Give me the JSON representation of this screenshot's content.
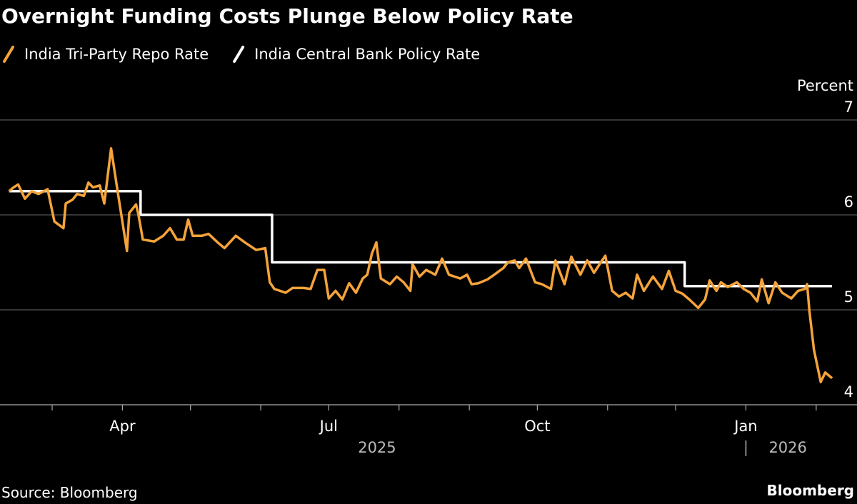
{
  "chart_data": {
    "type": "line",
    "title": "Overnight Funding Costs Plunge Below Policy Rate",
    "y_axis_label": "Percent",
    "source": "Source: Bloomberg",
    "brand": "Bloomberg",
    "ylim": [
      4,
      7
    ],
    "yticks": [
      4,
      5,
      6,
      7
    ],
    "xlim": [
      "2025-02-06",
      "2026-02-19"
    ],
    "xticks": [
      {
        "value": "2025-04-01",
        "label": "Apr"
      },
      {
        "value": "2025-07-01",
        "label": "Jul"
      },
      {
        "value": "2025-10-01",
        "label": "Oct"
      },
      {
        "value": "2026-01-01",
        "label": "Jan"
      }
    ],
    "xminorticks": [
      "2025-03-01",
      "2025-05-01",
      "2025-06-01",
      "2025-08-01",
      "2025-09-01",
      "2025-11-01",
      "2025-12-01",
      "2026-02-01"
    ],
    "year_labels": [
      "2025",
      "2026"
    ],
    "grid": true,
    "series": [
      {
        "name": "India Tri-Party Repo Rate",
        "color": "#f5a33a",
        "step": false,
        "x": [
          "2025-02-10",
          "2025-02-12",
          "2025-02-14",
          "2025-02-17",
          "2025-02-20",
          "2025-02-23",
          "2025-02-27",
          "2025-03-02",
          "2025-03-06",
          "2025-03-07",
          "2025-03-10",
          "2025-03-12",
          "2025-03-15",
          "2025-03-17",
          "2025-03-19",
          "2025-03-22",
          "2025-03-24",
          "2025-03-27",
          "2025-03-30",
          "2025-04-03",
          "2025-04-04",
          "2025-04-07",
          "2025-04-08",
          "2025-04-10",
          "2025-04-15",
          "2025-04-19",
          "2025-04-22",
          "2025-04-25",
          "2025-04-28",
          "2025-04-30",
          "2025-05-02",
          "2025-05-06",
          "2025-05-09",
          "2025-05-13",
          "2025-05-16",
          "2025-05-21",
          "2025-05-25",
          "2025-05-30",
          "2025-06-03",
          "2025-06-05",
          "2025-06-07",
          "2025-06-12",
          "2025-06-15",
          "2025-06-20",
          "2025-06-23",
          "2025-06-26",
          "2025-06-29",
          "2025-07-01",
          "2025-07-04",
          "2025-07-07",
          "2025-07-10",
          "2025-07-13",
          "2025-07-16",
          "2025-07-18",
          "2025-07-20",
          "2025-07-22",
          "2025-07-24",
          "2025-07-28",
          "2025-07-31",
          "2025-08-03",
          "2025-08-06",
          "2025-08-07",
          "2025-08-10",
          "2025-08-13",
          "2025-08-17",
          "2025-08-20",
          "2025-08-23",
          "2025-08-28",
          "2025-08-31",
          "2025-09-02",
          "2025-09-05",
          "2025-09-09",
          "2025-09-12",
          "2025-09-16",
          "2025-09-18",
          "2025-09-21",
          "2025-09-23",
          "2025-09-26",
          "2025-09-30",
          "2025-10-03",
          "2025-10-07",
          "2025-10-09",
          "2025-10-13",
          "2025-10-16",
          "2025-10-20",
          "2025-10-23",
          "2025-10-26",
          "2025-10-29",
          "2025-10-31",
          "2025-11-03",
          "2025-11-06",
          "2025-11-09",
          "2025-11-12",
          "2025-11-14",
          "2025-11-17",
          "2025-11-21",
          "2025-11-25",
          "2025-11-28",
          "2025-12-01",
          "2025-12-04",
          "2025-12-07",
          "2025-12-11",
          "2025-12-14",
          "2025-12-16",
          "2025-12-19",
          "2025-12-21",
          "2025-12-24",
          "2025-12-28",
          "2025-12-31",
          "2026-01-03",
          "2026-01-06",
          "2026-01-08",
          "2026-01-11",
          "2026-01-14",
          "2026-01-17",
          "2026-01-21",
          "2026-01-24",
          "2026-01-27",
          "2026-01-28",
          "2026-01-29",
          "2026-01-31",
          "2026-02-03",
          "2026-02-05",
          "2026-02-08"
        ],
        "values": [
          6.25,
          6.29,
          6.32,
          6.17,
          6.25,
          6.22,
          6.27,
          5.93,
          5.86,
          6.12,
          6.16,
          6.22,
          6.2,
          6.34,
          6.29,
          6.31,
          6.12,
          6.7,
          6.23,
          5.62,
          6.02,
          6.11,
          6.01,
          5.74,
          5.72,
          5.78,
          5.86,
          5.74,
          5.74,
          5.95,
          5.78,
          5.78,
          5.8,
          5.71,
          5.65,
          5.78,
          5.71,
          5.63,
          5.65,
          5.29,
          5.22,
          5.18,
          5.23,
          5.23,
          5.22,
          5.42,
          5.42,
          5.12,
          5.2,
          5.11,
          5.28,
          5.18,
          5.33,
          5.37,
          5.59,
          5.71,
          5.33,
          5.27,
          5.35,
          5.29,
          5.2,
          5.48,
          5.35,
          5.42,
          5.37,
          5.54,
          5.37,
          5.33,
          5.37,
          5.27,
          5.28,
          5.32,
          5.37,
          5.44,
          5.5,
          5.52,
          5.44,
          5.54,
          5.29,
          5.27,
          5.22,
          5.52,
          5.27,
          5.56,
          5.37,
          5.52,
          5.39,
          5.5,
          5.57,
          5.2,
          5.14,
          5.18,
          5.12,
          5.37,
          5.2,
          5.35,
          5.22,
          5.41,
          5.2,
          5.17,
          5.11,
          5.02,
          5.11,
          5.31,
          5.2,
          5.29,
          5.24,
          5.29,
          5.22,
          5.18,
          5.09,
          5.32,
          5.07,
          5.29,
          5.18,
          5.12,
          5.2,
          5.22,
          5.27,
          4.99,
          4.58,
          4.24,
          4.34,
          4.28
        ]
      },
      {
        "name": "India Central Bank Policy Rate",
        "color": "#ffffff",
        "step": true,
        "x": [
          "2025-02-10",
          "2025-04-09",
          "2025-06-06",
          "2025-12-05",
          "2026-02-08"
        ],
        "values": [
          6.25,
          6.0,
          5.5,
          5.25,
          5.25
        ]
      }
    ]
  }
}
